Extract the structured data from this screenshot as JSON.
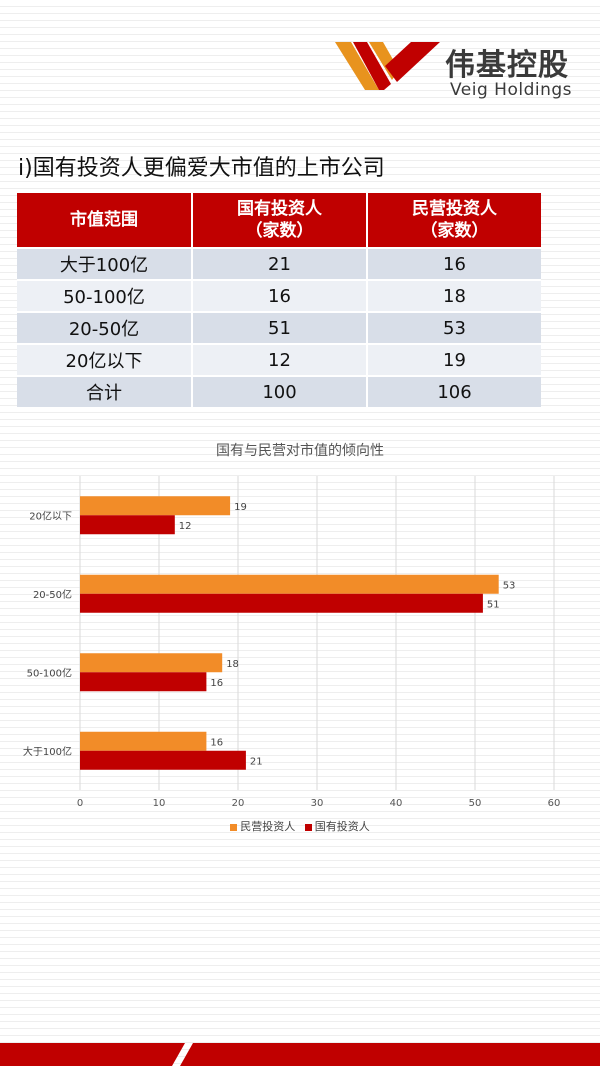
{
  "brand": {
    "name_cn": "伟基控股",
    "name_en": "Veig Holdings"
  },
  "section_title": "i)国有投资人更偏爱大市值的上市公司",
  "table": {
    "headers": [
      "市值范围",
      "国有投资人",
      "（家数）",
      "民营投资人",
      "（家数）"
    ],
    "rows": [
      [
        "大于100亿",
        "21",
        "16"
      ],
      [
        "50-100亿",
        "16",
        "18"
      ],
      [
        "20-50亿",
        "51",
        "53"
      ],
      [
        "20亿以下",
        "12",
        "19"
      ],
      [
        "合计",
        "100",
        "106"
      ]
    ]
  },
  "colors": {
    "brand_red": "#c00000",
    "series_orange": "#f28c28",
    "series_red": "#c00000"
  },
  "chart_data": {
    "type": "bar",
    "orientation": "horizontal",
    "title": "国有与民营对市值的倾向性",
    "categories": [
      "20亿以下",
      "20-50亿",
      "50-100亿",
      "大于100亿"
    ],
    "series": [
      {
        "name": "民营投资人",
        "values": [
          19,
          53,
          18,
          16
        ]
      },
      {
        "name": "国有投资人",
        "values": [
          12,
          51,
          16,
          21
        ]
      }
    ],
    "xlim": [
      0,
      60
    ],
    "x_ticks": [
      "0",
      "10",
      "20",
      "30",
      "40",
      "50",
      "60"
    ],
    "grid": true,
    "legend_position": "bottom"
  }
}
